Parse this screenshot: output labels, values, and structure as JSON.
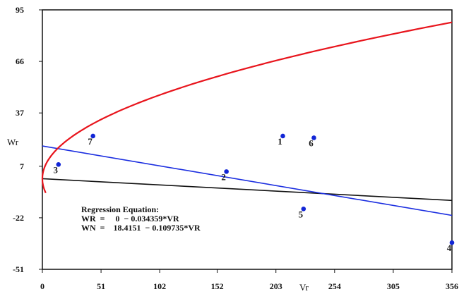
{
  "chart_data": {
    "type": "scatter",
    "xlabel": "Vr",
    "ylabel": "Wr",
    "xlim": [
      0,
      356
    ],
    "ylim": [
      -51,
      95
    ],
    "x_ticks": [
      {
        "value": 0,
        "label": "0"
      },
      {
        "value": 51,
        "label": "51"
      },
      {
        "value": 102,
        "label": "102"
      },
      {
        "value": 152,
        "label": "152"
      },
      {
        "value": 203,
        "label": "203"
      },
      {
        "value": 254,
        "label": "254"
      },
      {
        "value": 305,
        "label": "305"
      },
      {
        "value": 356,
        "label": "356"
      }
    ],
    "y_ticks": [
      {
        "value": 95,
        "label": "95"
      },
      {
        "value": 66,
        "label": "66"
      },
      {
        "value": 37,
        "label": "37"
      },
      {
        "value": 7,
        "label": "7"
      },
      {
        "value": -22,
        "label": "-22"
      },
      {
        "value": -51,
        "label": "-51"
      }
    ],
    "points": [
      {
        "label": "1",
        "x": 209,
        "y": 24
      },
      {
        "label": "2",
        "x": 160,
        "y": 4
      },
      {
        "label": "3",
        "x": 14,
        "y": 8
      },
      {
        "label": "4",
        "x": 356,
        "y": -36
      },
      {
        "label": "5",
        "x": 227,
        "y": -17
      },
      {
        "label": "6",
        "x": 236,
        "y": 23
      },
      {
        "label": "7",
        "x": 44,
        "y": 24
      }
    ],
    "regression": {
      "title": "Regression Equation:",
      "lines": [
        "WR  =     0  − 0.034359*VR",
        "WN  =    18.4151  − 0.109735*VR"
      ]
    },
    "curves": {
      "parabola_color": "#e8141c",
      "wr_line_color": "#111111",
      "wn_line_color": "#1b2ee0"
    },
    "colors": {
      "point": "#1226d6",
      "axis": "#111111"
    }
  }
}
